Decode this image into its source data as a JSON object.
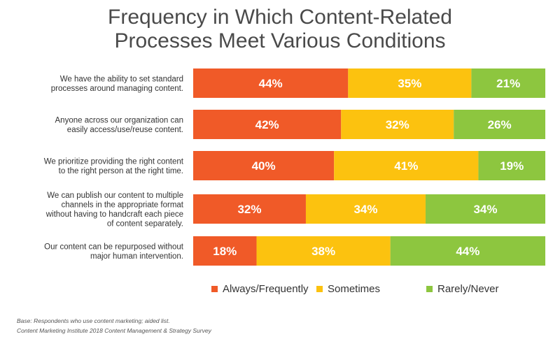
{
  "title_lines": [
    "Frequency in Which Content-Related",
    "Processes Meet Various Conditions"
  ],
  "colors": {
    "always": "#f05a28",
    "sometimes": "#fcc20f",
    "rarely": "#8dc63f"
  },
  "footnotes": {
    "base": "Base: Respondents who use content marketing; aided list.",
    "source": "Content Marketing Institute 2018 Content Management & Strategy Survey"
  },
  "chart_data": {
    "type": "bar",
    "orientation": "horizontal",
    "stacked": true,
    "title": "Frequency in Which Content-Related Processes Meet Various Conditions",
    "categories": [
      [
        "We have the ability to set standard",
        "processes around managing content."
      ],
      [
        "Anyone across our organization can",
        "easily access/use/reuse content."
      ],
      [
        "We prioritize providing the right content",
        "to the right person at the right time."
      ],
      [
        "We can publish our content to multiple",
        "channels in the appropriate format",
        "without having to handcraft each piece",
        "of content separately."
      ],
      [
        "Our content can be repurposed without",
        "major human intervention."
      ]
    ],
    "series": [
      {
        "name": "Always/Frequently",
        "key": "always",
        "values": [
          44,
          42,
          40,
          32,
          18
        ]
      },
      {
        "name": "Sometimes",
        "key": "sometimes",
        "values": [
          35,
          32,
          41,
          34,
          38
        ]
      },
      {
        "name": "Rarely/Never",
        "key": "rarely",
        "values": [
          21,
          26,
          19,
          34,
          44
        ]
      }
    ],
    "value_suffix": "%",
    "xlim": [
      0,
      100
    ],
    "legend": "bottom"
  }
}
